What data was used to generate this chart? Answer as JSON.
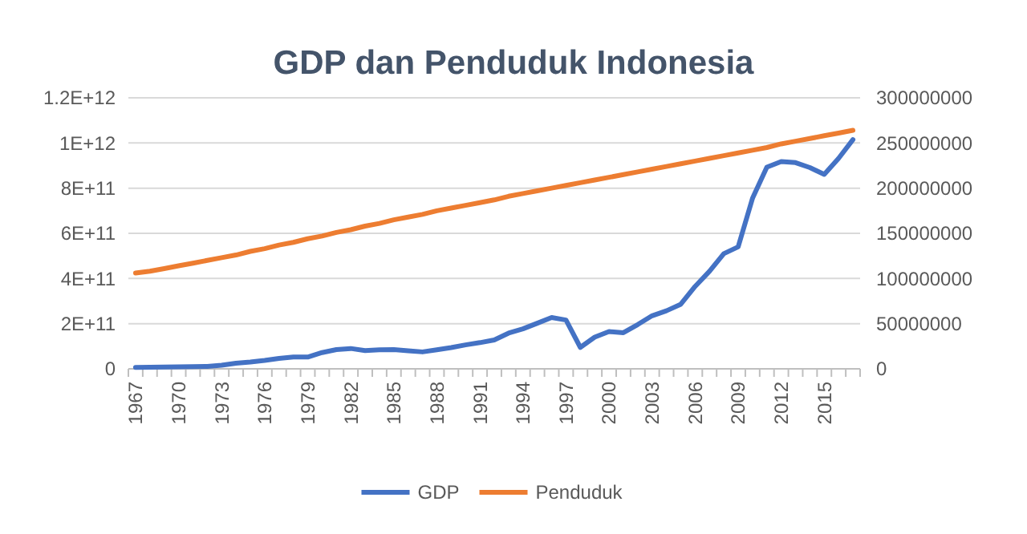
{
  "chart_data": {
    "type": "line",
    "title": "GDP dan Penduduk Indonesia",
    "categories": [
      "1967",
      null,
      null,
      "1970",
      null,
      null,
      "1973",
      null,
      null,
      "1976",
      null,
      null,
      "1979",
      null,
      null,
      "1982",
      null,
      null,
      "1985",
      null,
      null,
      "1988",
      null,
      null,
      "1991",
      null,
      null,
      "1994",
      null,
      null,
      "1997",
      null,
      null,
      "2000",
      null,
      null,
      "2003",
      null,
      null,
      "2006",
      null,
      null,
      "2009",
      null,
      null,
      "2012",
      null,
      null,
      "2015",
      null,
      null
    ],
    "series": [
      {
        "name": "GDP",
        "color": "#4472c4",
        "values": [
          6000000000,
          7000000000,
          8000000000,
          9000000000,
          10000000000,
          11000000000,
          16000000000,
          25000000000,
          30000000000,
          37000000000,
          46000000000,
          52000000000,
          52000000000,
          72000000000,
          85000000000,
          90000000000,
          81000000000,
          84000000000,
          85000000000,
          80000000000,
          75000000000,
          84000000000,
          94000000000,
          106000000000,
          116000000000,
          128000000000,
          158000000000,
          177000000000,
          202000000000,
          227000000000,
          216000000000,
          95000000000,
          140000000000,
          165000000000,
          160000000000,
          196000000000,
          235000000000,
          257000000000,
          286000000000,
          365000000000,
          432000000000,
          510000000000,
          540000000000,
          755000000000,
          893000000000,
          918000000000,
          913000000000,
          891000000000,
          861000000000,
          932000000000,
          1015000000000
        ]
      },
      {
        "name": "Penduduk",
        "color": "#ed7d31",
        "axis": "y2",
        "values": [
          106000000,
          108000000,
          111000000,
          114000000,
          117000000,
          120000000,
          123000000,
          126000000,
          130000000,
          133000000,
          137000000,
          140000000,
          144000000,
          147000000,
          151000000,
          154000000,
          158000000,
          161000000,
          165000000,
          168000000,
          171000000,
          175000000,
          178000000,
          181000000,
          184000000,
          187000000,
          191000000,
          194000000,
          197000000,
          200000000,
          203000000,
          206000000,
          209000000,
          212000000,
          215000000,
          218000000,
          221000000,
          224000000,
          227000000,
          230000000,
          233000000,
          236000000,
          239000000,
          242000000,
          245000000,
          249000000,
          252000000,
          255000000,
          258000000,
          261000000,
          264000000
        ]
      }
    ],
    "ylim": [
      0,
      1200000000000
    ],
    "yticks": [
      0,
      {
        "value": 200000000000,
        "label": "2E+11"
      },
      {
        "value": 400000000000,
        "label": "4E+11"
      },
      {
        "value": 600000000000,
        "label": "6E+11"
      },
      {
        "value": 800000000000,
        "label": "8E+11"
      },
      {
        "value": 1000000000000,
        "label": "1E+12"
      },
      {
        "value": 1200000000000,
        "label": "1.2E+12"
      }
    ],
    "y2lim": [
      0,
      300000000
    ],
    "y2ticks": [
      0,
      50000000,
      100000000,
      150000000,
      200000000,
      250000000,
      300000000
    ],
    "grid": "y",
    "legend": "bottom",
    "line_style": "solid"
  }
}
